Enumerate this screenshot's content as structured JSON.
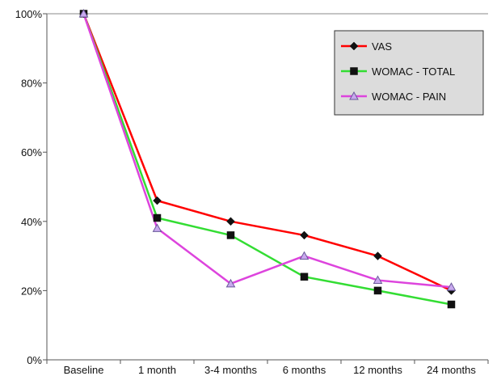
{
  "chart_data": {
    "type": "line",
    "title": "",
    "xlabel": "",
    "ylabel": "",
    "categories": [
      "Baseline",
      "1 month",
      "3-4 months",
      "6 months",
      "12 months",
      "24 months"
    ],
    "ylim": [
      0,
      100
    ],
    "yticks": [
      0,
      20,
      40,
      60,
      80,
      100
    ],
    "ytick_labels": [
      "0%",
      "20%",
      "40%",
      "60%",
      "80%",
      "100%"
    ],
    "grid": false,
    "legend_position": "top-right",
    "series": [
      {
        "name": "VAS",
        "color": "#ff0000",
        "marker": "diamond",
        "values": [
          100,
          46,
          40,
          36,
          30,
          20
        ]
      },
      {
        "name": "WOMAC - TOTAL",
        "color": "#33dd33",
        "marker": "square",
        "values": [
          100,
          41,
          36,
          24,
          20,
          16
        ]
      },
      {
        "name": "WOMAC - PAIN",
        "color": "#dd44dd",
        "marker": "triangle",
        "values": [
          100,
          38,
          22,
          30,
          23,
          21
        ]
      }
    ]
  }
}
